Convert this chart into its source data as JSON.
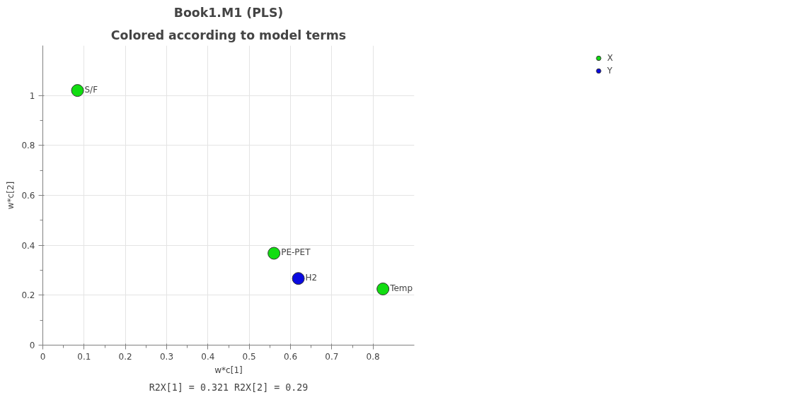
{
  "chart_data": {
    "type": "scatter",
    "title": "Book1.M1 (PLS)",
    "subtitle": "Colored according to model terms",
    "xlabel": "w*c[1]",
    "ylabel": "w*c[2]",
    "series": [
      {
        "name": "X",
        "color": "#11dd11",
        "x": [
          0.084,
          0.56,
          0.824
        ],
        "values": [
          1.02,
          0.368,
          0.225
        ]
      },
      {
        "name": "Y",
        "color": "#0a0ae0",
        "x": [
          0.619
        ],
        "values": [
          0.267
        ]
      }
    ],
    "annotations": [
      {
        "text": "S/F",
        "x": 0.084,
        "y": 1.02
      },
      {
        "text": "PE-PET",
        "x": 0.56,
        "y": 0.368
      },
      {
        "text": "H2",
        "x": 0.619,
        "y": 0.267
      },
      {
        "text": "Temp",
        "x": 0.824,
        "y": 0.225
      },
      "R2X[1] = 0.321 R2X[2] = 0.29"
    ],
    "xlim": [
      0,
      0.9
    ],
    "ylim": [
      0,
      1.2
    ],
    "xticks": [
      0,
      0.1,
      0.2,
      0.3,
      0.4,
      0.5,
      0.6,
      0.7,
      0.8
    ],
    "yticks": [
      0,
      0.2,
      0.4,
      0.6,
      0.8,
      1
    ],
    "grid": true,
    "legend": "top right",
    "marker": "circle"
  }
}
